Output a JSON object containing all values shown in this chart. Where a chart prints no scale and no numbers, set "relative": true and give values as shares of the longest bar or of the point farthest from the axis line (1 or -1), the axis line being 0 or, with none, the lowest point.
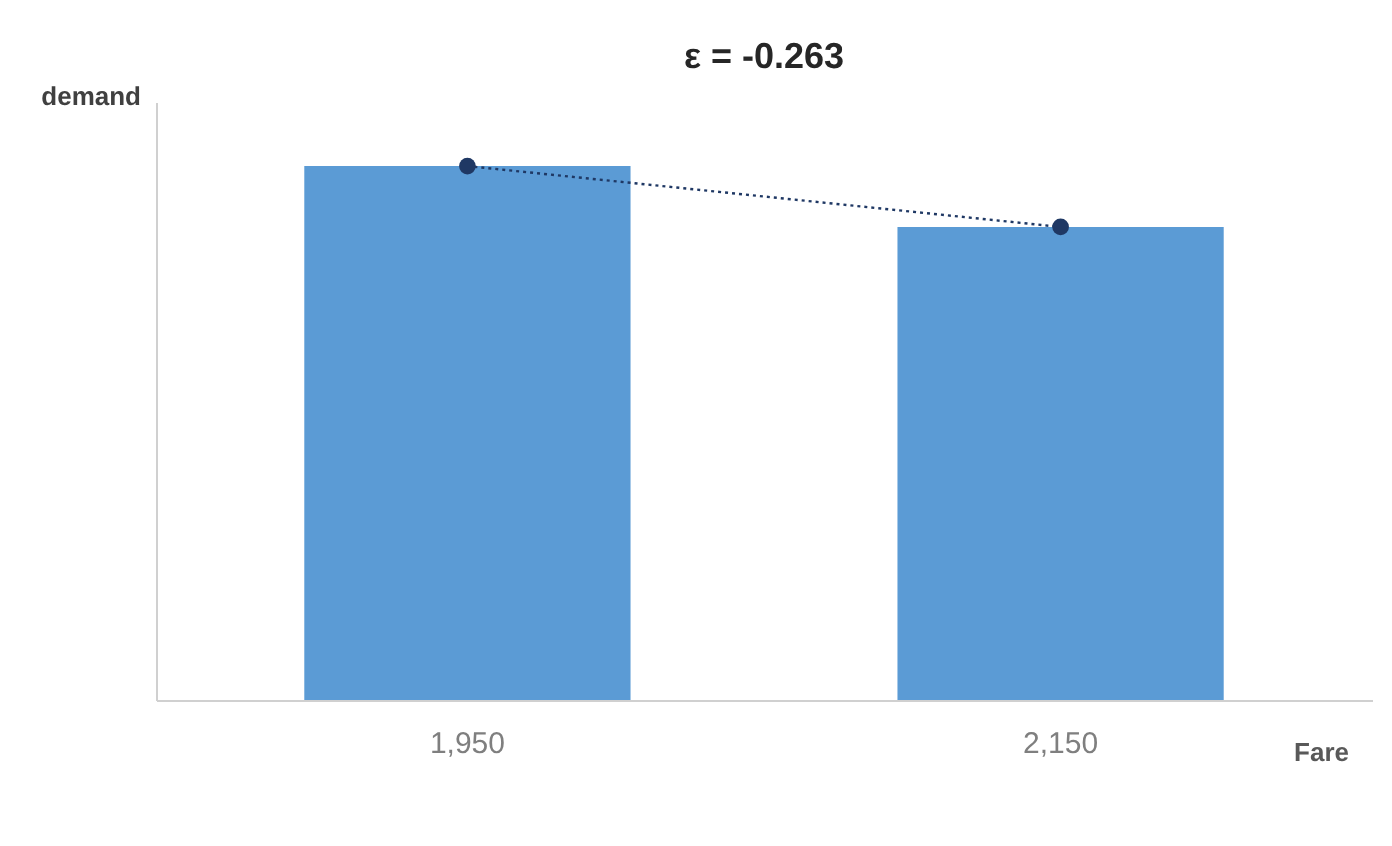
{
  "chart_data": {
    "type": "bar",
    "title": "ε = -0.263",
    "xlabel": "Fare",
    "ylabel": "demand",
    "relative": true,
    "categories": [
      "1,950",
      "2,150"
    ],
    "series": [
      {
        "color": "#5b9bd5",
        "values": [
          1,
          0.886
        ]
      },
      {
        "type": "line",
        "color": "#1f3864",
        "values": [
          1,
          0.886
        ],
        "line_style": "dotted",
        "marker": "circle"
      }
    ]
  }
}
